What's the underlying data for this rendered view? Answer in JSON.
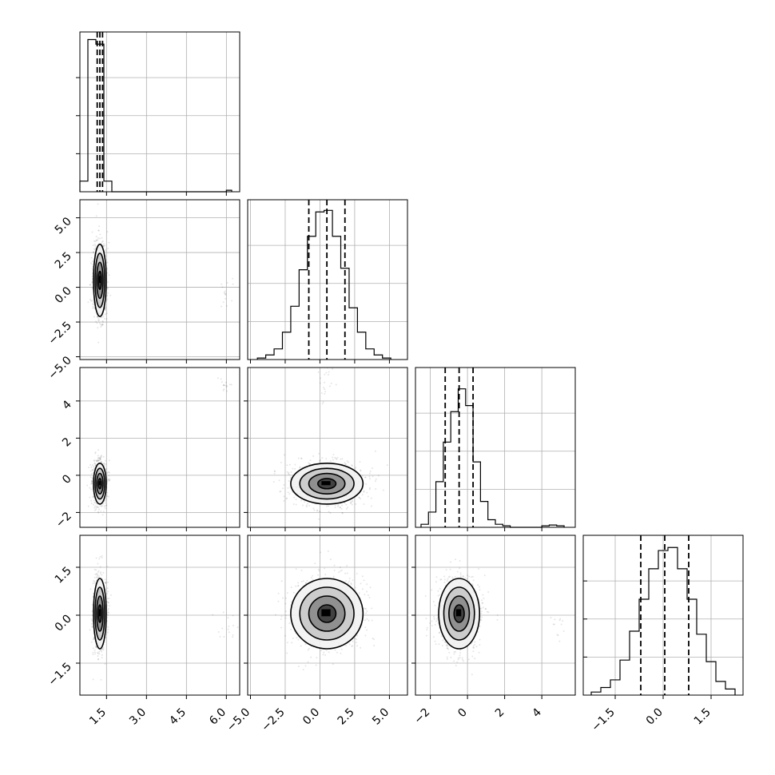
{
  "chart_data": {
    "type": "corner",
    "title": "",
    "grid": true,
    "n_params": 4,
    "params": [
      {
        "index": 0,
        "label": "",
        "range": [
          0.5,
          6.5
        ],
        "ticks": [
          1.5,
          3.0,
          4.5,
          6.0
        ],
        "tick_labels": [
          "1.5",
          "3.0",
          "4.5",
          "6.0"
        ],
        "quantiles": [
          1.15,
          1.25,
          1.35
        ],
        "hist": {
          "edges": [
            0.5,
            0.8,
            1.1,
            1.4,
            1.7,
            2.0,
            6.0,
            6.2
          ],
          "counts": [
            0.07,
            1.0,
            0.97,
            0.07,
            0.0,
            0.0,
            0.01
          ],
          "max_shown": 1.0
        }
      },
      {
        "index": 1,
        "label": "",
        "range": [
          -5.2,
          6.3
        ],
        "ticks": [
          -5.0,
          -2.5,
          0.0,
          2.5,
          5.0
        ],
        "tick_labels": [
          "−5.0",
          "−2.5",
          "0.0",
          "2.5",
          "5.0"
        ],
        "quantiles": [
          -0.8,
          0.5,
          1.8
        ],
        "hist": {
          "edges": [
            -4.5,
            -3.9,
            -3.3,
            -2.7,
            -2.1,
            -1.5,
            -0.9,
            -0.3,
            0.3,
            0.9,
            1.5,
            2.1,
            2.7,
            3.3,
            3.9,
            4.5,
            5.1
          ],
          "counts": [
            0.01,
            0.03,
            0.07,
            0.18,
            0.35,
            0.59,
            0.81,
            0.97,
            0.98,
            0.81,
            0.6,
            0.34,
            0.18,
            0.07,
            0.03,
            0.01
          ],
          "max_shown": 1.0
        }
      },
      {
        "index": 2,
        "label": "",
        "range": [
          -2.8,
          5.8
        ],
        "ticks": [
          -2,
          0,
          2,
          4
        ],
        "tick_labels": [
          "−2",
          "0",
          "2",
          "4"
        ],
        "quantiles": [
          -1.2,
          -0.45,
          0.3
        ],
        "hist": {
          "edges": [
            -2.5,
            -2.1,
            -1.7,
            -1.3,
            -0.9,
            -0.5,
            -0.1,
            0.3,
            0.7,
            1.1,
            1.5,
            1.9,
            2.3,
            4.0,
            4.4,
            4.8,
            5.2
          ],
          "counts": [
            0.02,
            0.1,
            0.3,
            0.56,
            0.76,
            0.91,
            0.8,
            0.43,
            0.17,
            0.05,
            0.02,
            0.01,
            0.0,
            0.01,
            0.015,
            0.01
          ],
          "max_shown": 1.0
        }
      },
      {
        "index": 3,
        "label": "",
        "range": [
          -2.5,
          2.5
        ],
        "ticks": [
          -1.5,
          0.0,
          1.5
        ],
        "tick_labels": [
          "−1.5",
          "0.0",
          "1.5"
        ],
        "quantiles": [
          -0.7,
          0.05,
          0.8
        ],
        "hist": {
          "edges": [
            -2.25,
            -1.95,
            -1.65,
            -1.35,
            -1.05,
            -0.75,
            -0.45,
            -0.15,
            0.15,
            0.45,
            0.75,
            1.05,
            1.35,
            1.65,
            1.95,
            2.25
          ],
          "counts": [
            0.02,
            0.05,
            0.1,
            0.23,
            0.42,
            0.63,
            0.83,
            0.95,
            0.97,
            0.83,
            0.63,
            0.4,
            0.22,
            0.09,
            0.04
          ],
          "max_shown": 1.0
        }
      }
    ],
    "pairs": [
      {
        "x": 0,
        "y": 1,
        "center": [
          1.25,
          0.5
        ],
        "sigma": [
          0.12,
          1.3
        ],
        "outliers": {
          "center": [
            6.0,
            -0.5
          ],
          "count": 15
        }
      },
      {
        "x": 0,
        "y": 2,
        "center": [
          1.25,
          -0.45
        ],
        "sigma": [
          0.12,
          0.55
        ],
        "outliers": {
          "center": [
            6.0,
            4.9
          ],
          "count": 15
        }
      },
      {
        "x": 0,
        "y": 3,
        "center": [
          1.25,
          0.05
        ],
        "sigma": [
          0.12,
          0.55
        ],
        "outliers": {
          "center": [
            6.0,
            -0.3
          ],
          "count": 15
        }
      },
      {
        "x": 1,
        "y": 2,
        "center": [
          0.5,
          -0.45
        ],
        "sigma": [
          1.3,
          0.55
        ],
        "outliers": {
          "center": [
            0.5,
            4.9
          ],
          "count": 20
        }
      },
      {
        "x": 1,
        "y": 3,
        "center": [
          0.5,
          0.05
        ],
        "sigma": [
          1.3,
          0.55
        ],
        "outliers": null
      },
      {
        "x": 2,
        "y": 3,
        "center": [
          -0.45,
          0.05
        ],
        "sigma": [
          0.55,
          0.55
        ],
        "outliers": {
          "center": [
            4.8,
            -0.3
          ],
          "count": 12
        }
      }
    ],
    "contour_levels_sigma": [
      0.5,
      1.0,
      1.5,
      2.0
    ]
  }
}
